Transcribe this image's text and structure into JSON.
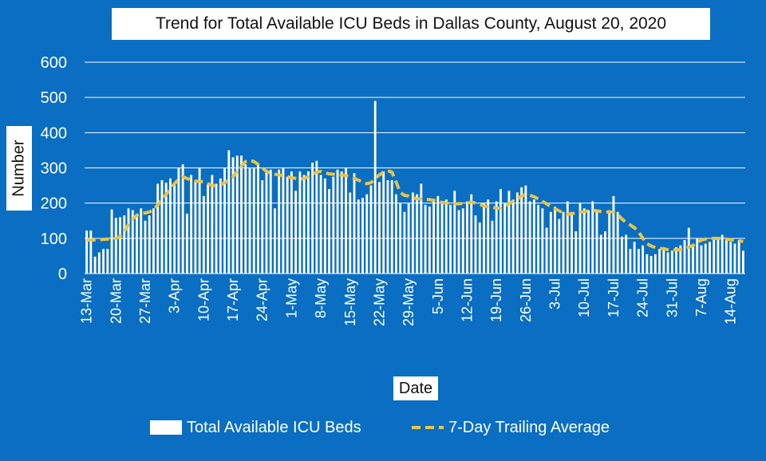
{
  "colors": {
    "background": "#0a6ec2",
    "bars": "#ffffff",
    "average": "#e8c547",
    "grid": "#ffffff",
    "text": "#ffffff"
  },
  "title": "Trend for Total Available ICU Beds in Dallas County, August 20, 2020",
  "xlabel": "Date",
  "ylabel": "Number",
  "legend": {
    "bars": "Total Available ICU Beds",
    "average": "7-Day Trailing Average"
  },
  "chart_data": {
    "type": "bar",
    "title": "Trend for Total Available ICU Beds in Dallas County, August 20, 2020",
    "xlabel": "Date",
    "ylabel": "Number",
    "ylim": [
      0,
      600
    ],
    "yticks": [
      0,
      100,
      200,
      300,
      400,
      500,
      600
    ],
    "grid": true,
    "legend_position": "bottom",
    "xticks": [
      "13-Mar",
      "20-Mar",
      "27-Mar",
      "3-Apr",
      "10-Apr",
      "17-Apr",
      "24-Apr",
      "1-May",
      "8-May",
      "15-May",
      "22-May",
      "29-May",
      "5-Jun",
      "12-Jun",
      "19-Jun",
      "26-Jun",
      "3-Jul",
      "10-Jul",
      "17-Jul",
      "24-Jul",
      "31-Jul",
      "7-Aug",
      "14-Aug"
    ],
    "x_start": "2020-03-13",
    "x_end": "2020-08-20",
    "series": [
      {
        "name": "Total Available ICU Beds",
        "kind": "bar",
        "values": [
          122,
          122,
          48,
          60,
          70,
          70,
          182,
          158,
          160,
          165,
          185,
          180,
          170,
          185,
          150,
          165,
          185,
          255,
          265,
          258,
          270,
          255,
          300,
          310,
          170,
          280,
          260,
          300,
          220,
          255,
          280,
          255,
          270,
          300,
          350,
          330,
          335,
          335,
          310,
          300,
          300,
          310,
          265,
          295,
          295,
          185,
          295,
          300,
          275,
          290,
          235,
          290,
          280,
          290,
          315,
          320,
          280,
          270,
          240,
          275,
          295,
          290,
          300,
          230,
          285,
          210,
          215,
          225,
          250,
          490,
          260,
          290,
          265,
          265,
          225,
          200,
          175,
          200,
          230,
          225,
          255,
          195,
          190,
          210,
          220,
          200,
          210,
          195,
          235,
          180,
          185,
          205,
          225,
          165,
          145,
          200,
          210,
          150,
          205,
          240,
          200,
          235,
          210,
          230,
          245,
          250,
          205,
          210,
          195,
          185,
          130,
          175,
          190,
          155,
          175,
          205,
          175,
          120,
          200,
          185,
          180,
          205,
          180,
          110,
          120,
          180,
          220,
          175,
          105,
          110,
          70,
          90,
          70,
          80,
          55,
          50,
          55,
          70,
          75,
          60,
          65,
          75,
          80,
          95,
          130,
          80,
          100,
          80,
          85,
          90,
          95,
          100,
          110,
          95,
          90,
          85,
          95,
          65
        ]
      },
      {
        "name": "7-Day Trailing Average",
        "kind": "line",
        "values": [
          95,
          95,
          95,
          96,
          97,
          98,
          98,
          100,
          105,
          120,
          140,
          155,
          165,
          170,
          172,
          175,
          180,
          195,
          210,
          225,
          240,
          255,
          268,
          275,
          270,
          265,
          262,
          262,
          260,
          255,
          250,
          250,
          252,
          258,
          265,
          275,
          290,
          305,
          318,
          322,
          318,
          310,
          300,
          290,
          285,
          282,
          280,
          278,
          275,
          272,
          270,
          268,
          270,
          275,
          282,
          288,
          290,
          286,
          283,
          282,
          280,
          280,
          278,
          275,
          270,
          265,
          260,
          255,
          258,
          270,
          280,
          288,
          292,
          288,
          260,
          230,
          222,
          220,
          215,
          212,
          212,
          210,
          210,
          208,
          205,
          202,
          200,
          199,
          198,
          198,
          199,
          200,
          203,
          200,
          196,
          192,
          190,
          188,
          186,
          185,
          190,
          198,
          205,
          212,
          220,
          225,
          222,
          218,
          212,
          205,
          198,
          190,
          184,
          178,
          172,
          168,
          170,
          172,
          174,
          176,
          178,
          180,
          178,
          176,
          175,
          175,
          174,
          168,
          155,
          145,
          138,
          130,
          118,
          100,
          85,
          78,
          74,
          72,
          70,
          68,
          67,
          67,
          68,
          70,
          75,
          80,
          88,
          95,
          98,
          100,
          100,
          100,
          99,
          98,
          96,
          95,
          93,
          91
        ]
      }
    ]
  }
}
